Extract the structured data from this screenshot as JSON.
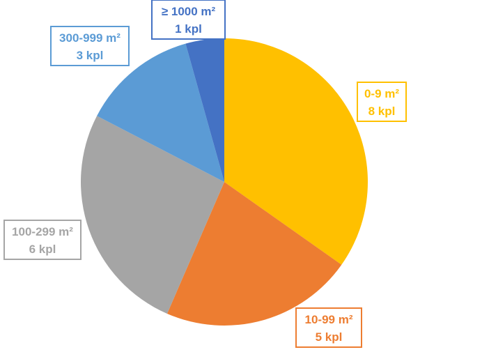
{
  "chart_data": {
    "type": "pie",
    "slices": [
      {
        "label": "0-9 m²",
        "count_label": "8 kpl",
        "value": 8,
        "color": "#FFC000"
      },
      {
        "label": "10-99 m²",
        "count_label": "5 kpl",
        "value": 5,
        "color": "#ED7D31"
      },
      {
        "label": "100-299 m²",
        "count_label": "6 kpl",
        "value": 6,
        "color": "#A5A5A5"
      },
      {
        "label": "300-999 m²",
        "count_label": "3 kpl",
        "value": 3,
        "color": "#5B9BD5"
      },
      {
        "label": "≥ 1000 m²",
        "count_label": "1 kpl",
        "value": 1,
        "color": "#4472C4"
      }
    ],
    "start": "12 o'clock",
    "direction": "clockwise",
    "legend": "none",
    "data_labels": "outside, boxed, colored by slice"
  }
}
